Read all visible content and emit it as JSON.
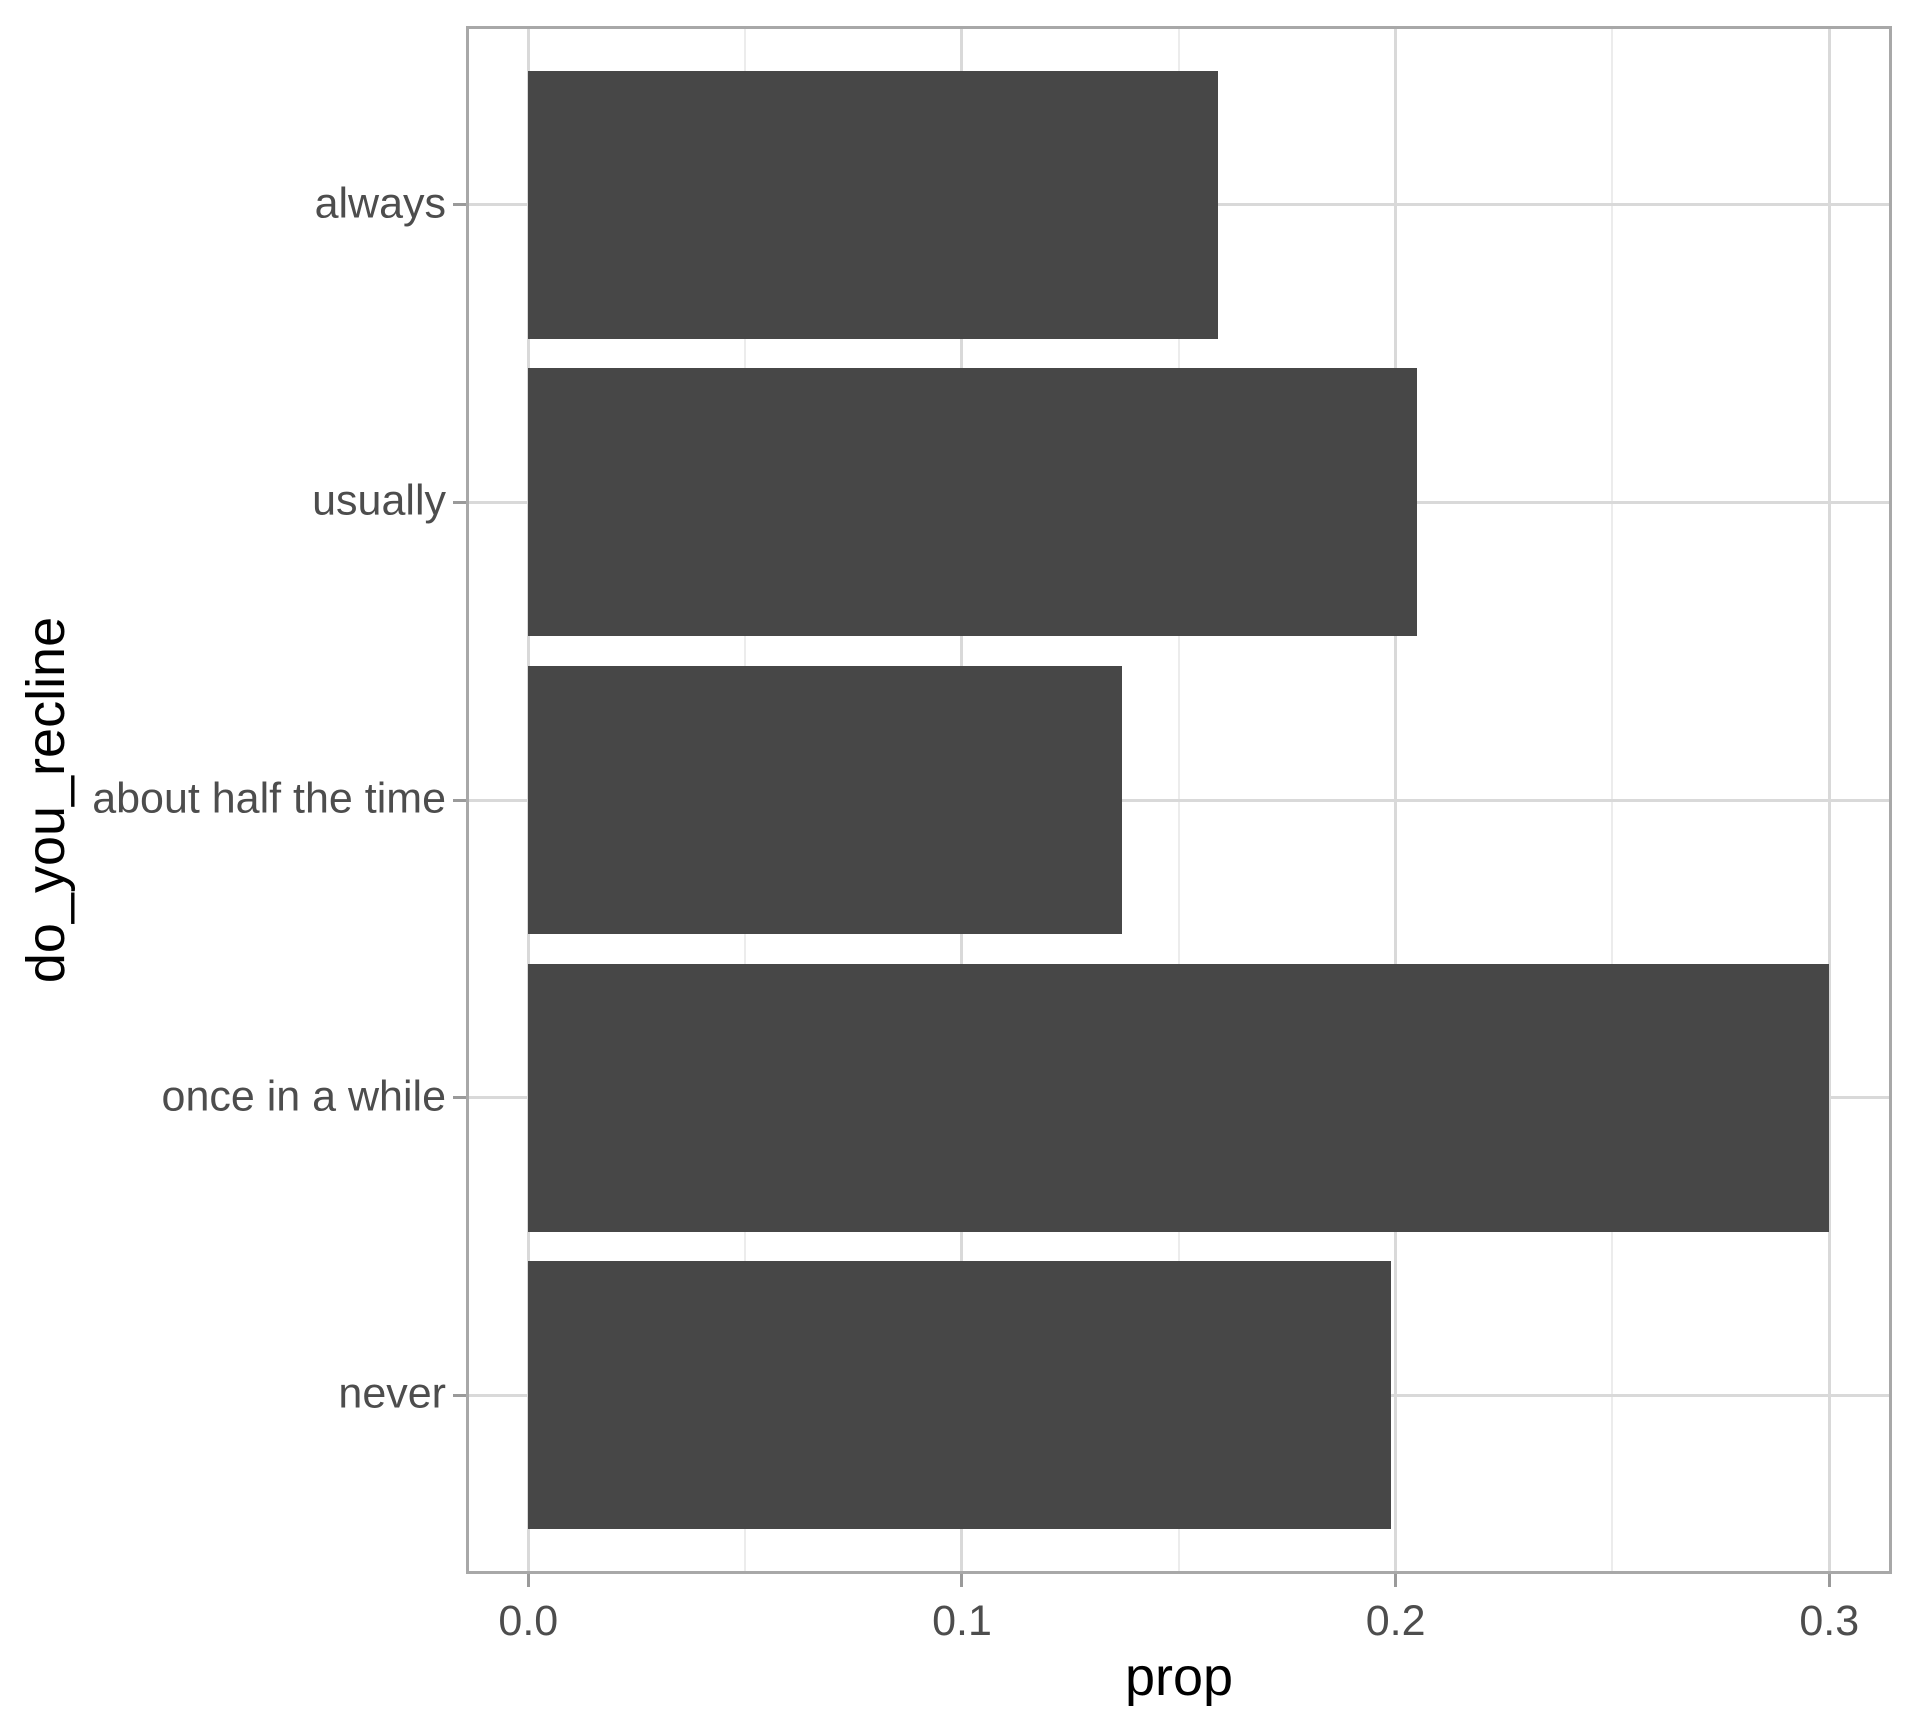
{
  "chart_data": {
    "type": "bar",
    "orientation": "horizontal",
    "title": "",
    "xlabel": "prop",
    "ylabel": "do_you_recline",
    "categories": [
      "always",
      "usually",
      "about half the time",
      "once in a while",
      "never"
    ],
    "values": [
      0.159,
      0.205,
      0.137,
      0.3,
      0.199
    ],
    "x_ticks": [
      {
        "value": 0.0,
        "label": "0.0"
      },
      {
        "value": 0.1,
        "label": "0.1"
      },
      {
        "value": 0.2,
        "label": "0.2"
      },
      {
        "value": 0.3,
        "label": "0.3"
      }
    ],
    "x_minor_ticks": [
      0.05,
      0.15,
      0.25
    ],
    "xlim": [
      -0.01437,
      0.31446
    ],
    "bar_width_fraction": 0.9,
    "grid": "on",
    "legend": "none",
    "colors": {
      "bar_fill": "#474747",
      "panel_background": "#FFFFFF",
      "figure_background": "#FFFFFF",
      "panel_border": "#A8A8A8",
      "grid_major": "#D9D9D9",
      "grid_minor": "#ECECEC",
      "axis_tick": "#9A9A9A",
      "axis_text": "#4D4D4D",
      "axis_title": "#000000"
    }
  }
}
